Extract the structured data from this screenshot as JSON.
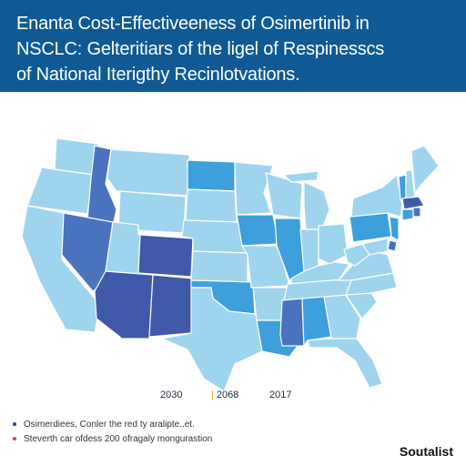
{
  "header": {
    "title_lines": [
      "Enanta Cost-Effectiveeness of Osimertinib in",
      "NSCLC: Gelteritiars of the ligel of Respinesscs",
      "of National Iterigthy Recinlotvations."
    ]
  },
  "colors": {
    "header_bg": "#0f5a94",
    "light": "#9fd4ef",
    "medium": "#3d9fdc",
    "dark": "#4a72bf",
    "darkest": "#4059a8"
  },
  "legend": {
    "items": [
      "2030",
      "2068",
      "2017"
    ]
  },
  "notes": [
    "Osimerdiees, Conler the red ty aralipte..et.",
    "Steverth car ofdess 200 ofragaly mongurastion"
  ],
  "brand": "Soutalist",
  "map": {
    "states": [
      {
        "name": "WA",
        "shade": "light"
      },
      {
        "name": "OR",
        "shade": "light"
      },
      {
        "name": "CA",
        "shade": "light"
      },
      {
        "name": "ID",
        "shade": "dark"
      },
      {
        "name": "NV",
        "shade": "dark"
      },
      {
        "name": "MT",
        "shade": "light"
      },
      {
        "name": "WY",
        "shade": "light"
      },
      {
        "name": "UT",
        "shade": "light"
      },
      {
        "name": "AZ",
        "shade": "darkest"
      },
      {
        "name": "CO",
        "shade": "darkest"
      },
      {
        "name": "NM",
        "shade": "darkest"
      },
      {
        "name": "ND",
        "shade": "medium"
      },
      {
        "name": "SD",
        "shade": "light"
      },
      {
        "name": "NE",
        "shade": "light"
      },
      {
        "name": "KS",
        "shade": "light"
      },
      {
        "name": "OK",
        "shade": "medium"
      },
      {
        "name": "TX",
        "shade": "light"
      },
      {
        "name": "MN",
        "shade": "light"
      },
      {
        "name": "IA",
        "shade": "medium"
      },
      {
        "name": "MO",
        "shade": "light"
      },
      {
        "name": "AR",
        "shade": "light"
      },
      {
        "name": "LA",
        "shade": "medium"
      },
      {
        "name": "WI",
        "shade": "light"
      },
      {
        "name": "IL",
        "shade": "medium"
      },
      {
        "name": "MI",
        "shade": "light"
      },
      {
        "name": "IN",
        "shade": "light"
      },
      {
        "name": "OH",
        "shade": "light"
      },
      {
        "name": "KY",
        "shade": "light"
      },
      {
        "name": "TN",
        "shade": "light"
      },
      {
        "name": "MS",
        "shade": "dark"
      },
      {
        "name": "AL",
        "shade": "medium"
      },
      {
        "name": "GA",
        "shade": "light"
      },
      {
        "name": "FL",
        "shade": "light"
      },
      {
        "name": "SC",
        "shade": "light"
      },
      {
        "name": "NC",
        "shade": "light"
      },
      {
        "name": "VA",
        "shade": "light"
      },
      {
        "name": "WV",
        "shade": "light"
      },
      {
        "name": "PA",
        "shade": "medium"
      },
      {
        "name": "NY",
        "shade": "light"
      },
      {
        "name": "NJ",
        "shade": "medium"
      },
      {
        "name": "DE",
        "shade": "dark"
      },
      {
        "name": "MD",
        "shade": "light"
      },
      {
        "name": "VT",
        "shade": "medium"
      },
      {
        "name": "NH",
        "shade": "light"
      },
      {
        "name": "ME",
        "shade": "light"
      },
      {
        "name": "MA",
        "shade": "darkest"
      },
      {
        "name": "CT",
        "shade": "medium"
      },
      {
        "name": "RI",
        "shade": "dark"
      }
    ]
  }
}
